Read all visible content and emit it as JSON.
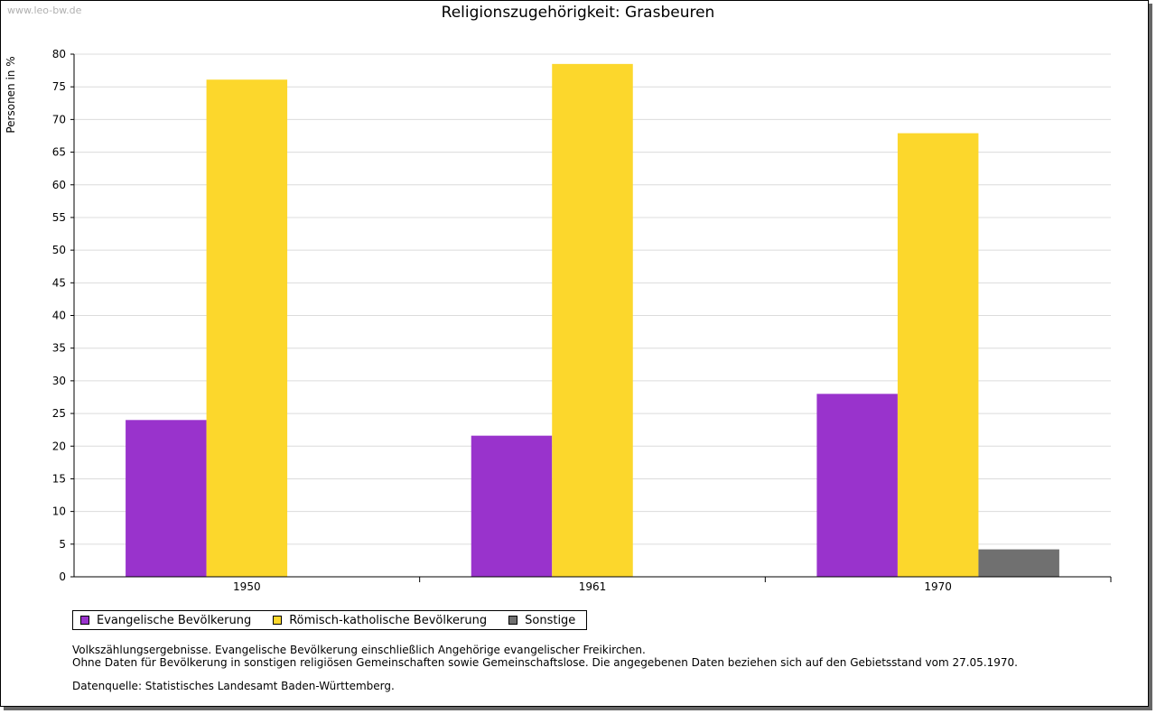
{
  "watermark": "www.leo-bw.de",
  "chart_data": {
    "type": "bar",
    "title": "Religionszugehörigkeit: Grasbeuren",
    "xlabel": "",
    "ylabel": "Personen in %",
    "ylim": [
      0,
      80
    ],
    "yticks": [
      "0",
      "5",
      "10",
      "15",
      "20",
      "25",
      "30",
      "35",
      "40",
      "45",
      "50",
      "55",
      "60",
      "65",
      "70",
      "75",
      "80"
    ],
    "categories": [
      "1950",
      "1961",
      "1970"
    ],
    "series": [
      {
        "name": "Evangelische Bevölkerung",
        "color": "#9933cc",
        "values": [
          24.0,
          21.6,
          28.0
        ]
      },
      {
        "name": "Römisch-katholische Bevölkerung",
        "color": "#fcd72c",
        "values": [
          76.1,
          78.5,
          67.9
        ]
      },
      {
        "name": "Sonstige",
        "color": "#707070",
        "values": [
          0,
          0,
          4.2
        ]
      }
    ],
    "grid": true,
    "legend": "bottom-left"
  },
  "notes": {
    "line1": "Volkszählungsergebnisse. Evangelische Bevölkerung einschließlich Angehörige evangelischer Freikirchen.",
    "line2": "Ohne Daten für Bevölkerung in sonstigen religiösen Gemeinschaften sowie Gemeinschaftslose. Die angegebenen Daten beziehen sich auf den Gebietsstand vom 27.05.1970.",
    "source": "Datenquelle: Statistisches Landesamt Baden-Württemberg."
  }
}
